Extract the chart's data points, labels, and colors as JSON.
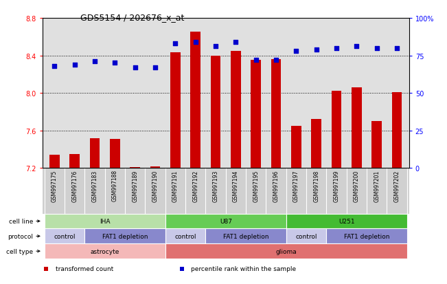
{
  "title": "GDS5154 / 202676_x_at",
  "samples": [
    "GSM997175",
    "GSM997176",
    "GSM997183",
    "GSM997188",
    "GSM997189",
    "GSM997190",
    "GSM997191",
    "GSM997192",
    "GSM997193",
    "GSM997194",
    "GSM997195",
    "GSM997196",
    "GSM997197",
    "GSM997198",
    "GSM997199",
    "GSM997200",
    "GSM997201",
    "GSM997202"
  ],
  "bar_values": [
    7.34,
    7.35,
    7.52,
    7.51,
    7.21,
    7.22,
    8.43,
    8.65,
    8.4,
    8.45,
    8.35,
    8.36,
    7.65,
    7.72,
    8.02,
    8.06,
    7.7,
    8.01
  ],
  "dot_values": [
    68,
    69,
    71,
    70,
    67,
    67,
    83,
    84,
    81,
    84,
    72,
    72,
    78,
    79,
    80,
    81,
    80,
    80
  ],
  "bar_color": "#cc0000",
  "dot_color": "#0000cc",
  "ylim_left": [
    7.2,
    8.8
  ],
  "ylim_right": [
    0,
    100
  ],
  "yticks_left": [
    7.2,
    7.6,
    8.0,
    8.4,
    8.8
  ],
  "yticks_right": [
    0,
    25,
    50,
    75,
    100
  ],
  "ytick_labels_right": [
    "0",
    "25",
    "50",
    "75",
    "100%"
  ],
  "grid_lines": [
    7.6,
    8.0,
    8.4
  ],
  "cell_line_groups": [
    {
      "label": "IHA",
      "start": 0,
      "end": 6,
      "color": "#b8e0a8"
    },
    {
      "label": "U87",
      "start": 6,
      "end": 12,
      "color": "#66cc55"
    },
    {
      "label": "U251",
      "start": 12,
      "end": 18,
      "color": "#44bb33"
    }
  ],
  "protocol_groups": [
    {
      "label": "control",
      "start": 0,
      "end": 2,
      "color": "#c8c8e8"
    },
    {
      "label": "FAT1 depletion",
      "start": 2,
      "end": 6,
      "color": "#8888cc"
    },
    {
      "label": "control",
      "start": 6,
      "end": 8,
      "color": "#c8c8e8"
    },
    {
      "label": "FAT1 depletion",
      "start": 8,
      "end": 12,
      "color": "#8888cc"
    },
    {
      "label": "control",
      "start": 12,
      "end": 14,
      "color": "#c8c8e8"
    },
    {
      "label": "FAT1 depletion",
      "start": 14,
      "end": 18,
      "color": "#8888cc"
    }
  ],
  "celltype_groups": [
    {
      "label": "astrocyte",
      "start": 0,
      "end": 6,
      "color": "#f4b8b8"
    },
    {
      "label": "glioma",
      "start": 6,
      "end": 18,
      "color": "#e07070"
    }
  ],
  "legend_items": [
    {
      "label": "transformed count",
      "color": "#cc0000",
      "marker": "s"
    },
    {
      "label": "percentile rank within the sample",
      "color": "#0000cc",
      "marker": "s"
    }
  ],
  "bar_width": 0.5,
  "background_color": "#ffffff",
  "plot_bg_color": "#e0e0e0",
  "tick_area_color": "#d0d0d0"
}
